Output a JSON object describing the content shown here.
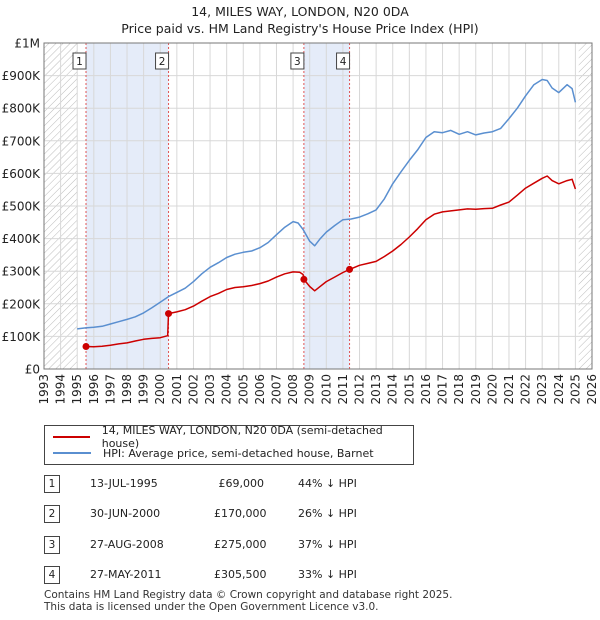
{
  "title": "14, MILES WAY, LONDON, N20 0DA",
  "subtitle": "Price paid vs. HM Land Registry's House Price Index (HPI)",
  "chart_data": {
    "type": "line",
    "title": "14, MILES WAY, LONDON, N20 0DA",
    "subtitle": "Price paid vs. HM Land Registry's House Price Index (HPI)",
    "xlim": [
      1993,
      2026
    ],
    "ylim": [
      0,
      1000000
    ],
    "x_ticks": [
      1993,
      1994,
      1995,
      1996,
      1997,
      1998,
      1999,
      2000,
      2001,
      2002,
      2003,
      2004,
      2005,
      2006,
      2007,
      2008,
      2009,
      2010,
      2011,
      2012,
      2013,
      2014,
      2015,
      2016,
      2017,
      2018,
      2019,
      2020,
      2021,
      2022,
      2023,
      2024,
      2025,
      2026
    ],
    "y_ticks": [
      0,
      100000,
      200000,
      300000,
      400000,
      500000,
      600000,
      700000,
      800000,
      900000,
      1000000
    ],
    "y_tick_labels": [
      "£0",
      "£100K",
      "£200K",
      "£300K",
      "£400K",
      "£500K",
      "£600K",
      "£700K",
      "£800K",
      "£900K",
      "£1M"
    ],
    "grid": true,
    "hatched_ranges": [
      [
        1993,
        1995.0
      ],
      [
        2025.2,
        2026
      ]
    ],
    "shaded_ranges": [
      [
        1995.53,
        2000.5
      ],
      [
        2008.65,
        2011.4
      ]
    ],
    "series": [
      {
        "name": "14, MILES WAY, LONDON, N20 0DA (semi-detached house)",
        "color": "#cc0000",
        "x": [
          1995.53,
          1996.0,
          1996.5,
          1997.0,
          1997.5,
          1998.0,
          1998.5,
          1999.0,
          1999.5,
          2000.0,
          2000.45,
          2000.5,
          2001.0,
          2001.5,
          2002.0,
          2002.5,
          2003.0,
          2003.5,
          2004.0,
          2004.5,
          2005.0,
          2005.5,
          2006.0,
          2006.5,
          2007.0,
          2007.5,
          2008.0,
          2008.4,
          2008.6,
          2008.65,
          2009.0,
          2009.3,
          2009.6,
          2010.0,
          2010.5,
          2011.0,
          2011.4,
          2012.0,
          2012.5,
          2013.0,
          2013.5,
          2014.0,
          2014.5,
          2015.0,
          2015.5,
          2016.0,
          2016.5,
          2017.0,
          2017.5,
          2018.0,
          2018.5,
          2019.0,
          2019.5,
          2020.0,
          2020.5,
          2021.0,
          2021.5,
          2022.0,
          2022.5,
          2023.0,
          2023.3,
          2023.6,
          2024.0,
          2024.5,
          2024.8,
          2025.0
        ],
        "values": [
          69000,
          68000,
          70000,
          73000,
          77000,
          80000,
          86000,
          91000,
          94000,
          96000,
          102000,
          170000,
          175000,
          182000,
          193000,
          208000,
          222000,
          232000,
          244000,
          250000,
          252000,
          256000,
          262000,
          270000,
          282000,
          292000,
          298000,
          297000,
          290000,
          275000,
          253000,
          240000,
          252000,
          268000,
          282000,
          296000,
          305500,
          318000,
          324000,
          330000,
          345000,
          362000,
          382000,
          405000,
          430000,
          458000,
          475000,
          482000,
          485000,
          488000,
          491000,
          490000,
          492000,
          493000,
          503000,
          512000,
          533000,
          555000,
          570000,
          585000,
          592000,
          578000,
          568000,
          578000,
          582000,
          552000
        ]
      },
      {
        "name": "HPI: Average price, semi-detached house, Barnet",
        "color": "#5a8fd0",
        "x": [
          1995.0,
          1995.5,
          1996.0,
          1996.5,
          1997.0,
          1997.5,
          1998.0,
          1998.5,
          1999.0,
          1999.5,
          2000.0,
          2000.5,
          2001.0,
          2001.5,
          2002.0,
          2002.5,
          2003.0,
          2003.5,
          2004.0,
          2004.5,
          2005.0,
          2005.5,
          2006.0,
          2006.5,
          2007.0,
          2007.5,
          2008.0,
          2008.3,
          2008.6,
          2009.0,
          2009.3,
          2009.6,
          2010.0,
          2010.5,
          2011.0,
          2011.5,
          2012.0,
          2012.5,
          2013.0,
          2013.5,
          2014.0,
          2014.5,
          2015.0,
          2015.5,
          2016.0,
          2016.5,
          2017.0,
          2017.5,
          2018.0,
          2018.5,
          2019.0,
          2019.5,
          2020.0,
          2020.5,
          2021.0,
          2021.5,
          2022.0,
          2022.5,
          2023.0,
          2023.3,
          2023.6,
          2024.0,
          2024.5,
          2024.8,
          2025.0
        ],
        "values": [
          123000,
          126000,
          128000,
          131000,
          138000,
          145000,
          152000,
          160000,
          172000,
          188000,
          205000,
          222000,
          235000,
          248000,
          268000,
          292000,
          312000,
          326000,
          342000,
          352000,
          358000,
          362000,
          372000,
          388000,
          412000,
          435000,
          452000,
          448000,
          428000,
          392000,
          378000,
          398000,
          420000,
          440000,
          458000,
          460000,
          466000,
          476000,
          488000,
          522000,
          568000,
          605000,
          640000,
          672000,
          710000,
          728000,
          725000,
          732000,
          720000,
          728000,
          718000,
          724000,
          728000,
          738000,
          768000,
          800000,
          838000,
          872000,
          888000,
          885000,
          862000,
          848000,
          872000,
          860000,
          818000
        ]
      }
    ],
    "sales": [
      {
        "label": "1",
        "x": 1995.53,
        "value": 69000
      },
      {
        "label": "2",
        "x": 2000.5,
        "value": 170000
      },
      {
        "label": "3",
        "x": 2008.65,
        "value": 275000
      },
      {
        "label": "4",
        "x": 2011.4,
        "value": 305500
      }
    ]
  },
  "legend": [
    {
      "label": "14, MILES WAY, LONDON, N20 0DA (semi-detached house)",
      "color": "#cc0000"
    },
    {
      "label": "HPI: Average price, semi-detached house, Barnet",
      "color": "#5a8fd0"
    }
  ],
  "table": [
    {
      "id": "1",
      "date": "13-JUL-1995",
      "price": "£69,000",
      "delta": "44% ↓ HPI"
    },
    {
      "id": "2",
      "date": "30-JUN-2000",
      "price": "£170,000",
      "delta": "26% ↓ HPI"
    },
    {
      "id": "3",
      "date": "27-AUG-2008",
      "price": "£275,000",
      "delta": "37% ↓ HPI"
    },
    {
      "id": "4",
      "date": "27-MAY-2011",
      "price": "£305,500",
      "delta": "33% ↓ HPI"
    }
  ],
  "footer": {
    "line1": "Contains HM Land Registry data © Crown copyright and database right 2025.",
    "line2": "This data is licensed under the Open Government Licence v3.0."
  }
}
